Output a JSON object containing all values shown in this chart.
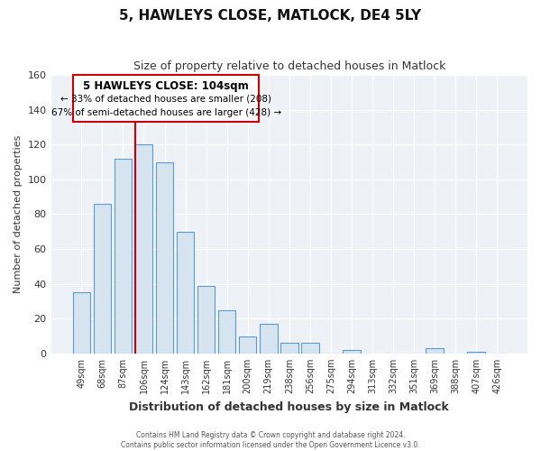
{
  "title": "5, HAWLEYS CLOSE, MATLOCK, DE4 5LY",
  "subtitle": "Size of property relative to detached houses in Matlock",
  "xlabel": "Distribution of detached houses by size in Matlock",
  "ylabel": "Number of detached properties",
  "bar_labels": [
    "49sqm",
    "68sqm",
    "87sqm",
    "106sqm",
    "124sqm",
    "143sqm",
    "162sqm",
    "181sqm",
    "200sqm",
    "219sqm",
    "238sqm",
    "256sqm",
    "275sqm",
    "294sqm",
    "313sqm",
    "332sqm",
    "351sqm",
    "369sqm",
    "388sqm",
    "407sqm",
    "426sqm"
  ],
  "bar_values": [
    35,
    86,
    112,
    120,
    110,
    70,
    39,
    25,
    10,
    17,
    6,
    6,
    0,
    2,
    0,
    0,
    0,
    3,
    0,
    1,
    0
  ],
  "bar_color": "#d6e4f0",
  "bar_edge_color": "#5b9bd5",
  "vline_color": "#cc0000",
  "annotation_title": "5 HAWLEYS CLOSE: 104sqm",
  "annotation_line1": "← 33% of detached houses are smaller (208)",
  "annotation_line2": "67% of semi-detached houses are larger (428) →",
  "annotation_box_edge": "#cc0000",
  "ylim": [
    0,
    160
  ],
  "yticks": [
    0,
    20,
    40,
    60,
    80,
    100,
    120,
    140,
    160
  ],
  "footer_line1": "Contains HM Land Registry data © Crown copyright and database right 2024.",
  "footer_line2": "Contains public sector information licensed under the Open Government Licence v3.0.",
  "bg_color": "#ffffff",
  "plot_bg_color": "#eef2f7",
  "grid_color": "#ffffff"
}
